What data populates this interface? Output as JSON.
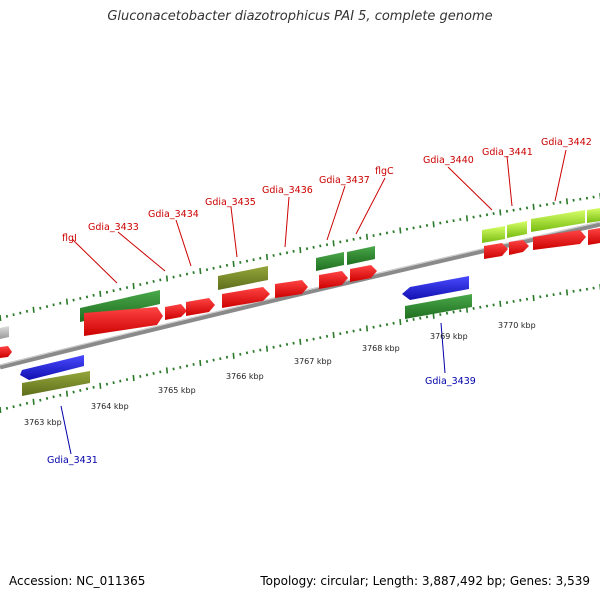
{
  "header": {
    "title": "Gluconacetobacter diazotrophicus PAI 5, complete genome"
  },
  "footer": {
    "accession": "Accession: NC_011365",
    "summary": "Topology: circular; Length: 3,887,492 bp; Genes: 3,539"
  },
  "scale_labels": [
    "3763 kbp",
    "3764 kbp",
    "3765 kbp",
    "3766 kbp",
    "3767 kbp",
    "3768 kbp",
    "3769 kbp",
    "3770 kbp"
  ],
  "gene_labels": [
    {
      "id": "flgI",
      "text": "flgI",
      "color": "#cc0000"
    },
    {
      "id": "gdia_3433",
      "text": "Gdia_3433",
      "color": "#cc0000"
    },
    {
      "id": "gdia_3434",
      "text": "Gdia_3434",
      "color": "#cc0000"
    },
    {
      "id": "gdia_3435",
      "text": "Gdia_3435",
      "color": "#cc0000"
    },
    {
      "id": "gdia_3436",
      "text": "Gdia_3436",
      "color": "#cc0000"
    },
    {
      "id": "gdia_3437",
      "text": "Gdia_3437",
      "color": "#cc0000"
    },
    {
      "id": "flgC",
      "text": "flgC",
      "color": "#cc0000"
    },
    {
      "id": "gdia_3440",
      "text": "Gdia_3440",
      "color": "#cc0000"
    },
    {
      "id": "gdia_3441",
      "text": "Gdia_3441",
      "color": "#cc0000"
    },
    {
      "id": "gdia_3442",
      "text": "Gdia_3442",
      "color": "#cc0000"
    },
    {
      "id": "gdia_3439",
      "text": "Gdia_3439",
      "color": "#0000aa"
    },
    {
      "id": "gdia_3431",
      "text": "Gdia_3431",
      "color": "#0000aa"
    }
  ],
  "colors": {
    "cds": "#ee1111",
    "gene_green": "#2e8b2e",
    "gene_olive": "#7a8a2a",
    "gene_lime": "#99dd22",
    "gene_blue": "#1a1aee",
    "gene_grey": "#bbbbbb",
    "backbone": "#888888",
    "tick": "#2a7a2a"
  }
}
